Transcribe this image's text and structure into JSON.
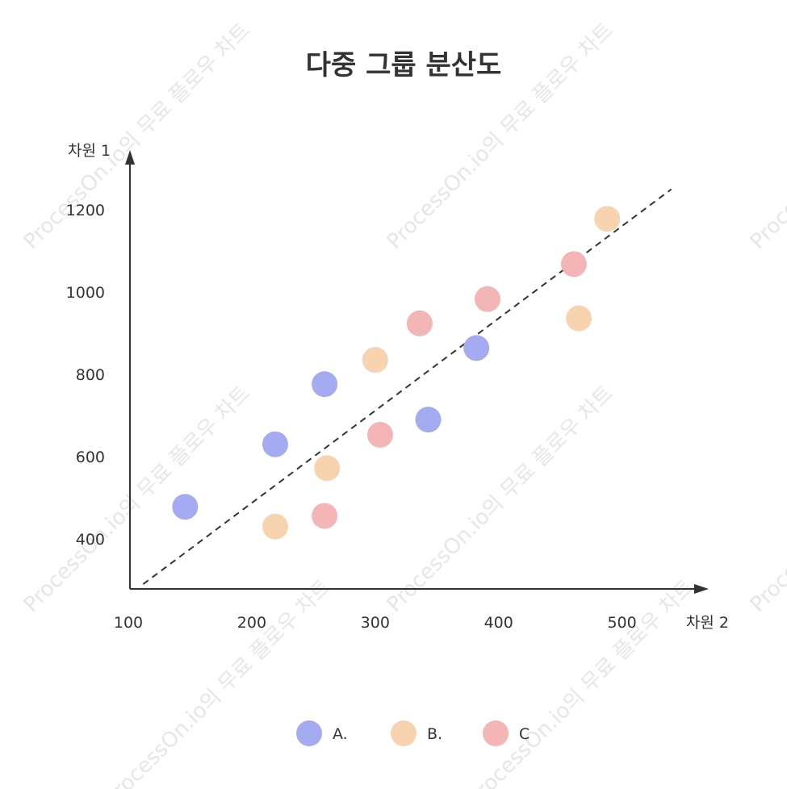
{
  "watermark": "ProcessOn.io의 무료 플로우 차트",
  "chart_data": {
    "type": "scatter",
    "title": "다중 그룹 분산도",
    "xlabel": "차원 2",
    "ylabel": "차원 1",
    "xlim": [
      100,
      570
    ],
    "ylim": [
      280,
      1340
    ],
    "x_ticks": [
      100,
      200,
      300,
      400,
      500
    ],
    "y_ticks": [
      400,
      600,
      800,
      1000,
      1200
    ],
    "legend_position": "bottom",
    "grid": false,
    "trendline": {
      "style": "dashed",
      "from": [
        112,
        290
      ],
      "to": [
        540,
        1250
      ],
      "color": "#333333"
    },
    "series": [
      {
        "name": "A.",
        "color": "#a4abf0",
        "points": [
          [
            146,
            478
          ],
          [
            219,
            630
          ],
          [
            259,
            776
          ],
          [
            343,
            690
          ],
          [
            382,
            864
          ]
        ]
      },
      {
        "name": "B.",
        "color": "#f8d3b0",
        "points": [
          [
            219,
            430
          ],
          [
            261,
            572
          ],
          [
            300,
            835
          ],
          [
            465,
            936
          ],
          [
            488,
            1178
          ]
        ]
      },
      {
        "name": "C",
        "color": "#f3b5b5",
        "points": [
          [
            259,
            456
          ],
          [
            304,
            653
          ],
          [
            336,
            924
          ],
          [
            391,
            983
          ],
          [
            461,
            1068
          ]
        ]
      }
    ]
  }
}
